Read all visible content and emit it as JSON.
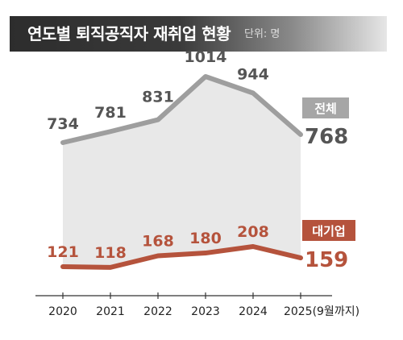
{
  "header": {
    "title": "연도별 퇴직공직자 재취업 현황",
    "unit": "단위: 명"
  },
  "chart_data": {
    "type": "line",
    "title": "연도별 퇴직공직자 재취업 현황",
    "unit": "단위: 명",
    "categories": [
      "2020",
      "2021",
      "2022",
      "2023",
      "2024",
      "2025(9월까지)"
    ],
    "series": [
      {
        "name": "전체",
        "values": [
          734,
          781,
          831,
          1014,
          944,
          768
        ],
        "color": "#9e9e9e",
        "label_color": "#555555"
      },
      {
        "name": "대기업",
        "values": [
          121,
          118,
          168,
          180,
          208,
          159
        ],
        "color": "#b5533c",
        "label_color": "#b5533c"
      }
    ],
    "fill_color": "#e8e8e8",
    "grid": false
  }
}
